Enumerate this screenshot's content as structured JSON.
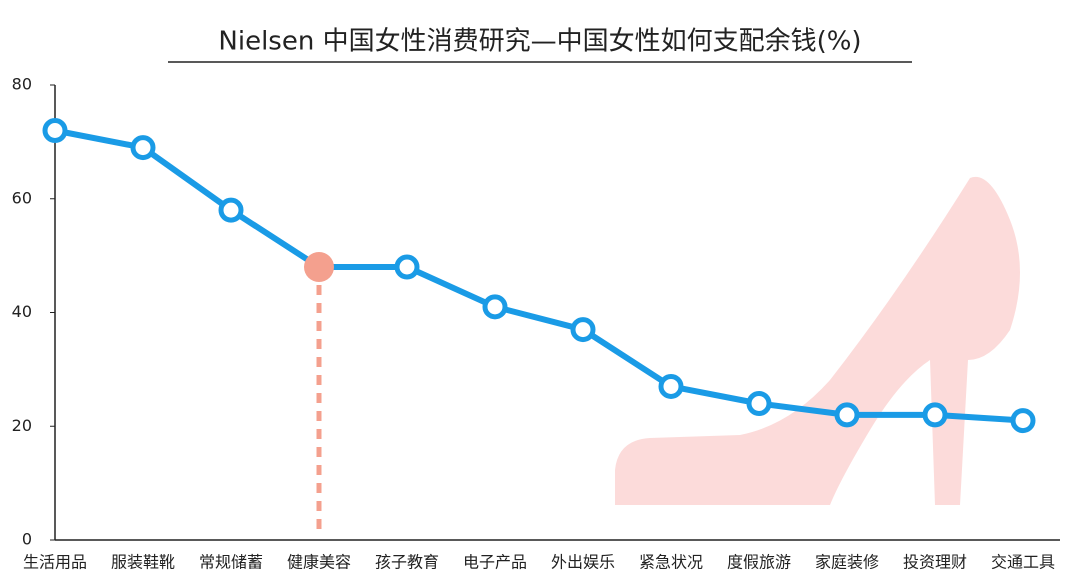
{
  "chart_data": {
    "type": "line",
    "title": "Nielsen 中国女性消费研究—中国女性如何支配余钱(%)",
    "categories": [
      "生活用品",
      "服装鞋靴",
      "常规储蓄",
      "健康美容",
      "孩子教育",
      "电子产品",
      "外出娱乐",
      "紧急状况",
      "度假旅游",
      "家庭装修",
      "投资理财",
      "交通工具"
    ],
    "series": [
      {
        "name": "如何支配余钱",
        "color": "#1a9be6",
        "values": [
          72,
          69,
          58,
          48,
          48,
          41,
          37,
          27,
          24,
          22,
          22,
          21
        ]
      }
    ],
    "highlight_index": 3,
    "highlight_color": "#f4a08e",
    "ylim": [
      0,
      80
    ],
    "yticks": [
      0,
      20,
      40,
      60,
      80
    ],
    "grid": false,
    "legend": false
  }
}
